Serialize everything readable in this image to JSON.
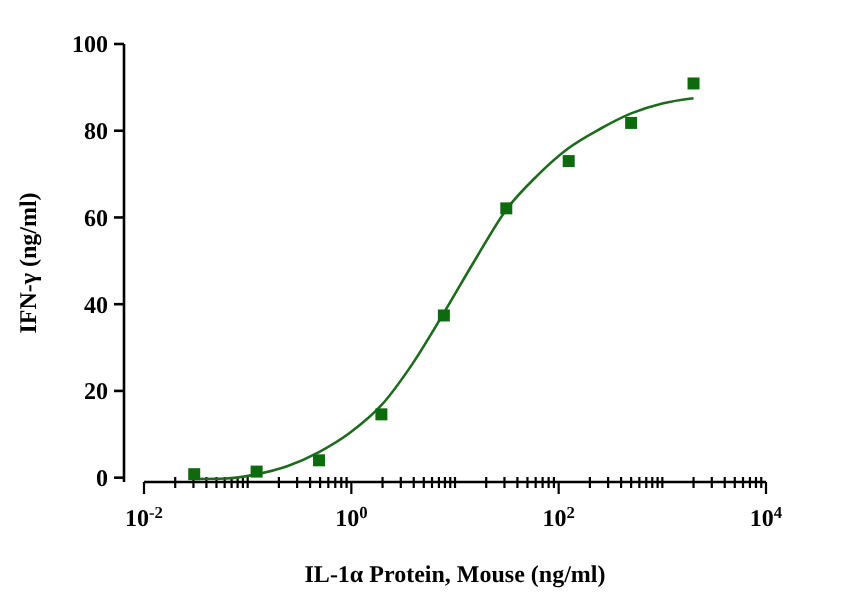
{
  "chart_data": {
    "type": "scatter",
    "xlabel": "IL-1α Protein, Mouse  (ng/ml)",
    "ylabel": "IFN-γ (ng/ml)",
    "log": "x",
    "marker": "square",
    "grid": false,
    "xlim": [
      0.01,
      10000
    ],
    "ylim": [
      -1,
      100
    ],
    "xticks": [
      {
        "value": 0.01,
        "label": "10$^{-2}$"
      },
      {
        "value": 0.02,
        "label": null
      },
      {
        "value": 0.03,
        "label": null
      },
      {
        "value": 0.04,
        "label": null
      },
      {
        "value": 0.05,
        "label": null
      },
      {
        "value": 0.06,
        "label": null
      },
      {
        "value": 0.07,
        "label": null
      },
      {
        "value": 0.08,
        "label": null
      },
      {
        "value": 0.09,
        "label": null
      },
      {
        "value": 0.1,
        "label": null
      },
      {
        "value": 0.2,
        "label": null
      },
      {
        "value": 0.3,
        "label": null
      },
      {
        "value": 0.4,
        "label": null
      },
      {
        "value": 0.5,
        "label": null
      },
      {
        "value": 0.6,
        "label": null
      },
      {
        "value": 0.7,
        "label": null
      },
      {
        "value": 0.8,
        "label": null
      },
      {
        "value": 0.9,
        "label": null
      },
      {
        "value": 1,
        "label": "10$^{0}$"
      },
      {
        "value": 2,
        "label": null
      },
      {
        "value": 3,
        "label": null
      },
      {
        "value": 4,
        "label": null
      },
      {
        "value": 5,
        "label": null
      },
      {
        "value": 6,
        "label": null
      },
      {
        "value": 7,
        "label": null
      },
      {
        "value": 8,
        "label": null
      },
      {
        "value": 9,
        "label": null
      },
      {
        "value": 10,
        "label": null
      },
      {
        "value": 20,
        "label": null
      },
      {
        "value": 30,
        "label": null
      },
      {
        "value": 40,
        "label": null
      },
      {
        "value": 50,
        "label": null
      },
      {
        "value": 60,
        "label": null
      },
      {
        "value": 70,
        "label": null
      },
      {
        "value": 80,
        "label": null
      },
      {
        "value": 90,
        "label": null
      },
      {
        "value": 100,
        "label": "10$^{2}$"
      },
      {
        "value": 200,
        "label": null
      },
      {
        "value": 300,
        "label": null
      },
      {
        "value": 400,
        "label": null
      },
      {
        "value": 500,
        "label": null
      },
      {
        "value": 600,
        "label": null
      },
      {
        "value": 700,
        "label": null
      },
      {
        "value": 800,
        "label": null
      },
      {
        "value": 900,
        "label": null
      },
      {
        "value": 1000,
        "label": null
      },
      {
        "value": 2000,
        "label": null
      },
      {
        "value": 3000,
        "label": null
      },
      {
        "value": 4000,
        "label": null
      },
      {
        "value": 5000,
        "label": null
      },
      {
        "value": 6000,
        "label": null
      },
      {
        "value": 7000,
        "label": null
      },
      {
        "value": 8000,
        "label": null
      },
      {
        "value": 9000,
        "label": null
      },
      {
        "value": 10000,
        "label": "10$^{4}$"
      }
    ],
    "yticks": [
      0,
      20,
      40,
      60,
      80,
      100
    ],
    "series": [
      {
        "type": "line",
        "marker": "none",
        "color": "#1e6b1e",
        "x": [
          0.0305,
          0.061,
          0.122,
          0.244,
          0.488,
          0.977,
          1.95,
          3.9,
          7.81,
          15.6,
          31.25,
          62.5,
          125,
          250,
          500,
          1000,
          2000
        ],
        "values": [
          -0.3,
          -0.2,
          0.8,
          2.7,
          5.9,
          10.4,
          16.7,
          26.3,
          38,
          50.2,
          61.8,
          69.7,
          76,
          80.4,
          84,
          86.3,
          87.5
        ]
      },
      {
        "color": "#0d6b0d",
        "x": [
          0.0305,
          0.122,
          0.488,
          1.95,
          7.81,
          31.25,
          125,
          500,
          2000
        ],
        "values": [
          0.8,
          1.4,
          4,
          14.6,
          37.4,
          62.1,
          73,
          81.8,
          90.9
        ]
      }
    ]
  }
}
